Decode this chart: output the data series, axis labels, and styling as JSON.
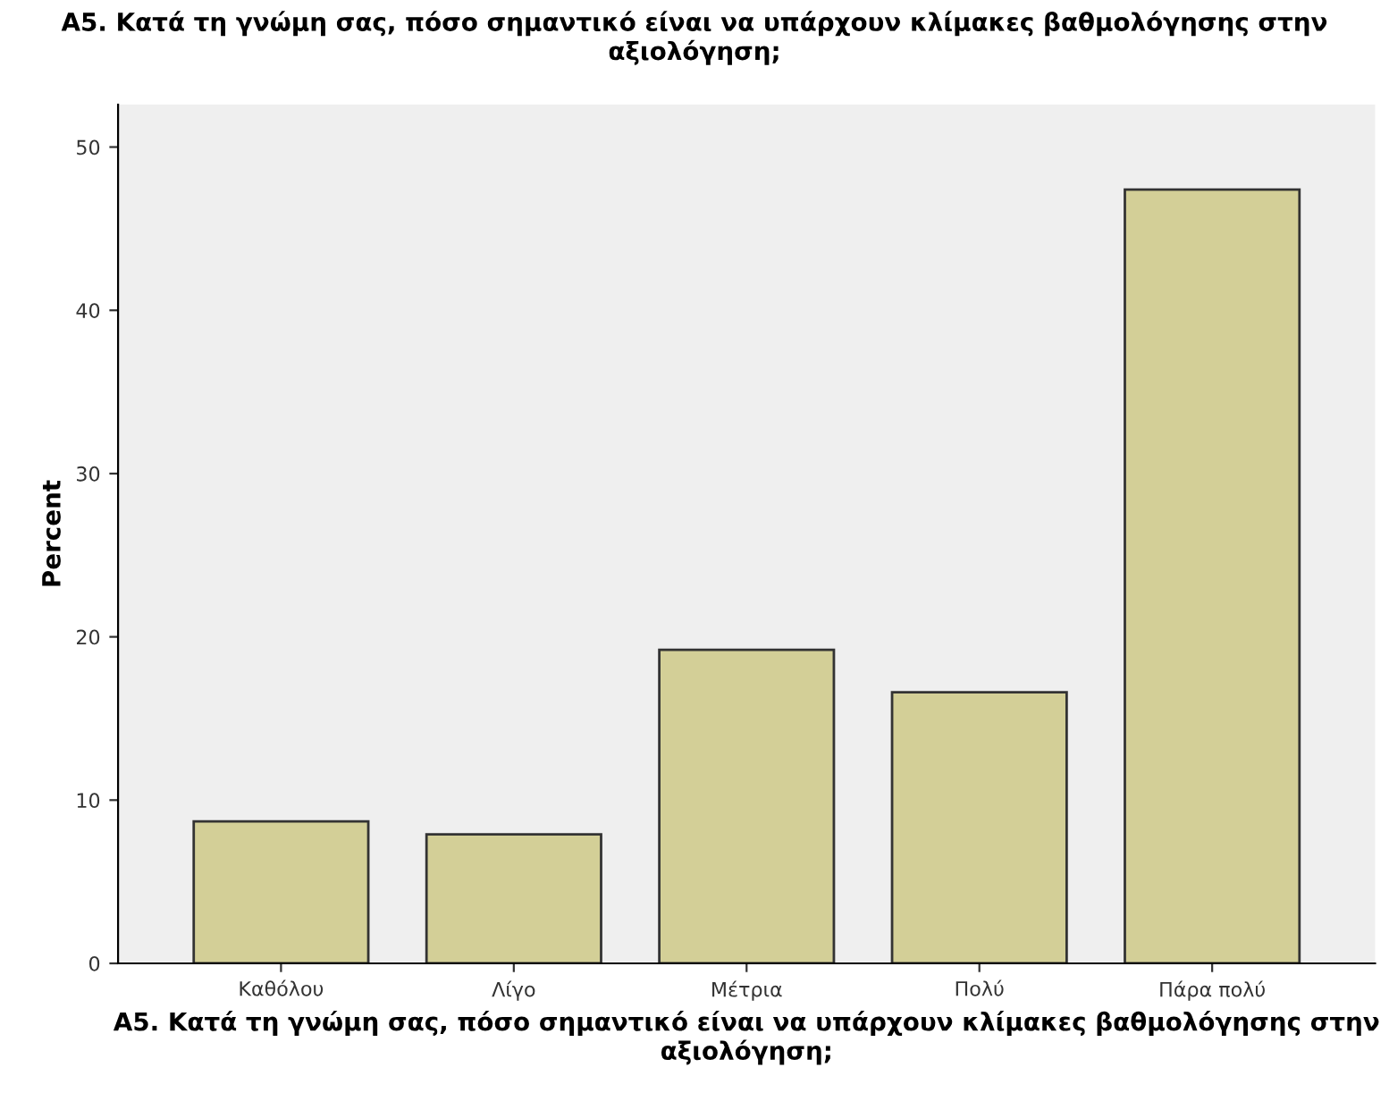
{
  "chart_data": {
    "type": "bar",
    "title": "A5. Κατά τη γνώμη σας, πόσο σημαντικό είναι να υπάρχουν κλίμακες βαθμολόγησης στην αξιολόγηση;",
    "xlabel": "A5. Κατά τη γνώμη σας, πόσο σημαντικό είναι να υπάρχουν κλίμακες βαθμολόγησης στην αξιολόγηση;",
    "ylabel": "Percent",
    "categories": [
      "Καθόλου",
      "Λίγο",
      "Μέτρια",
      "Πολύ",
      "Πάρα πολύ"
    ],
    "values": [
      8.7,
      7.9,
      19.2,
      16.6,
      47.4
    ],
    "color": "#d3cf97",
    "ylim": [
      0,
      52.6
    ],
    "yticks": [
      0,
      10,
      20,
      30,
      40,
      50
    ],
    "grid": false
  }
}
